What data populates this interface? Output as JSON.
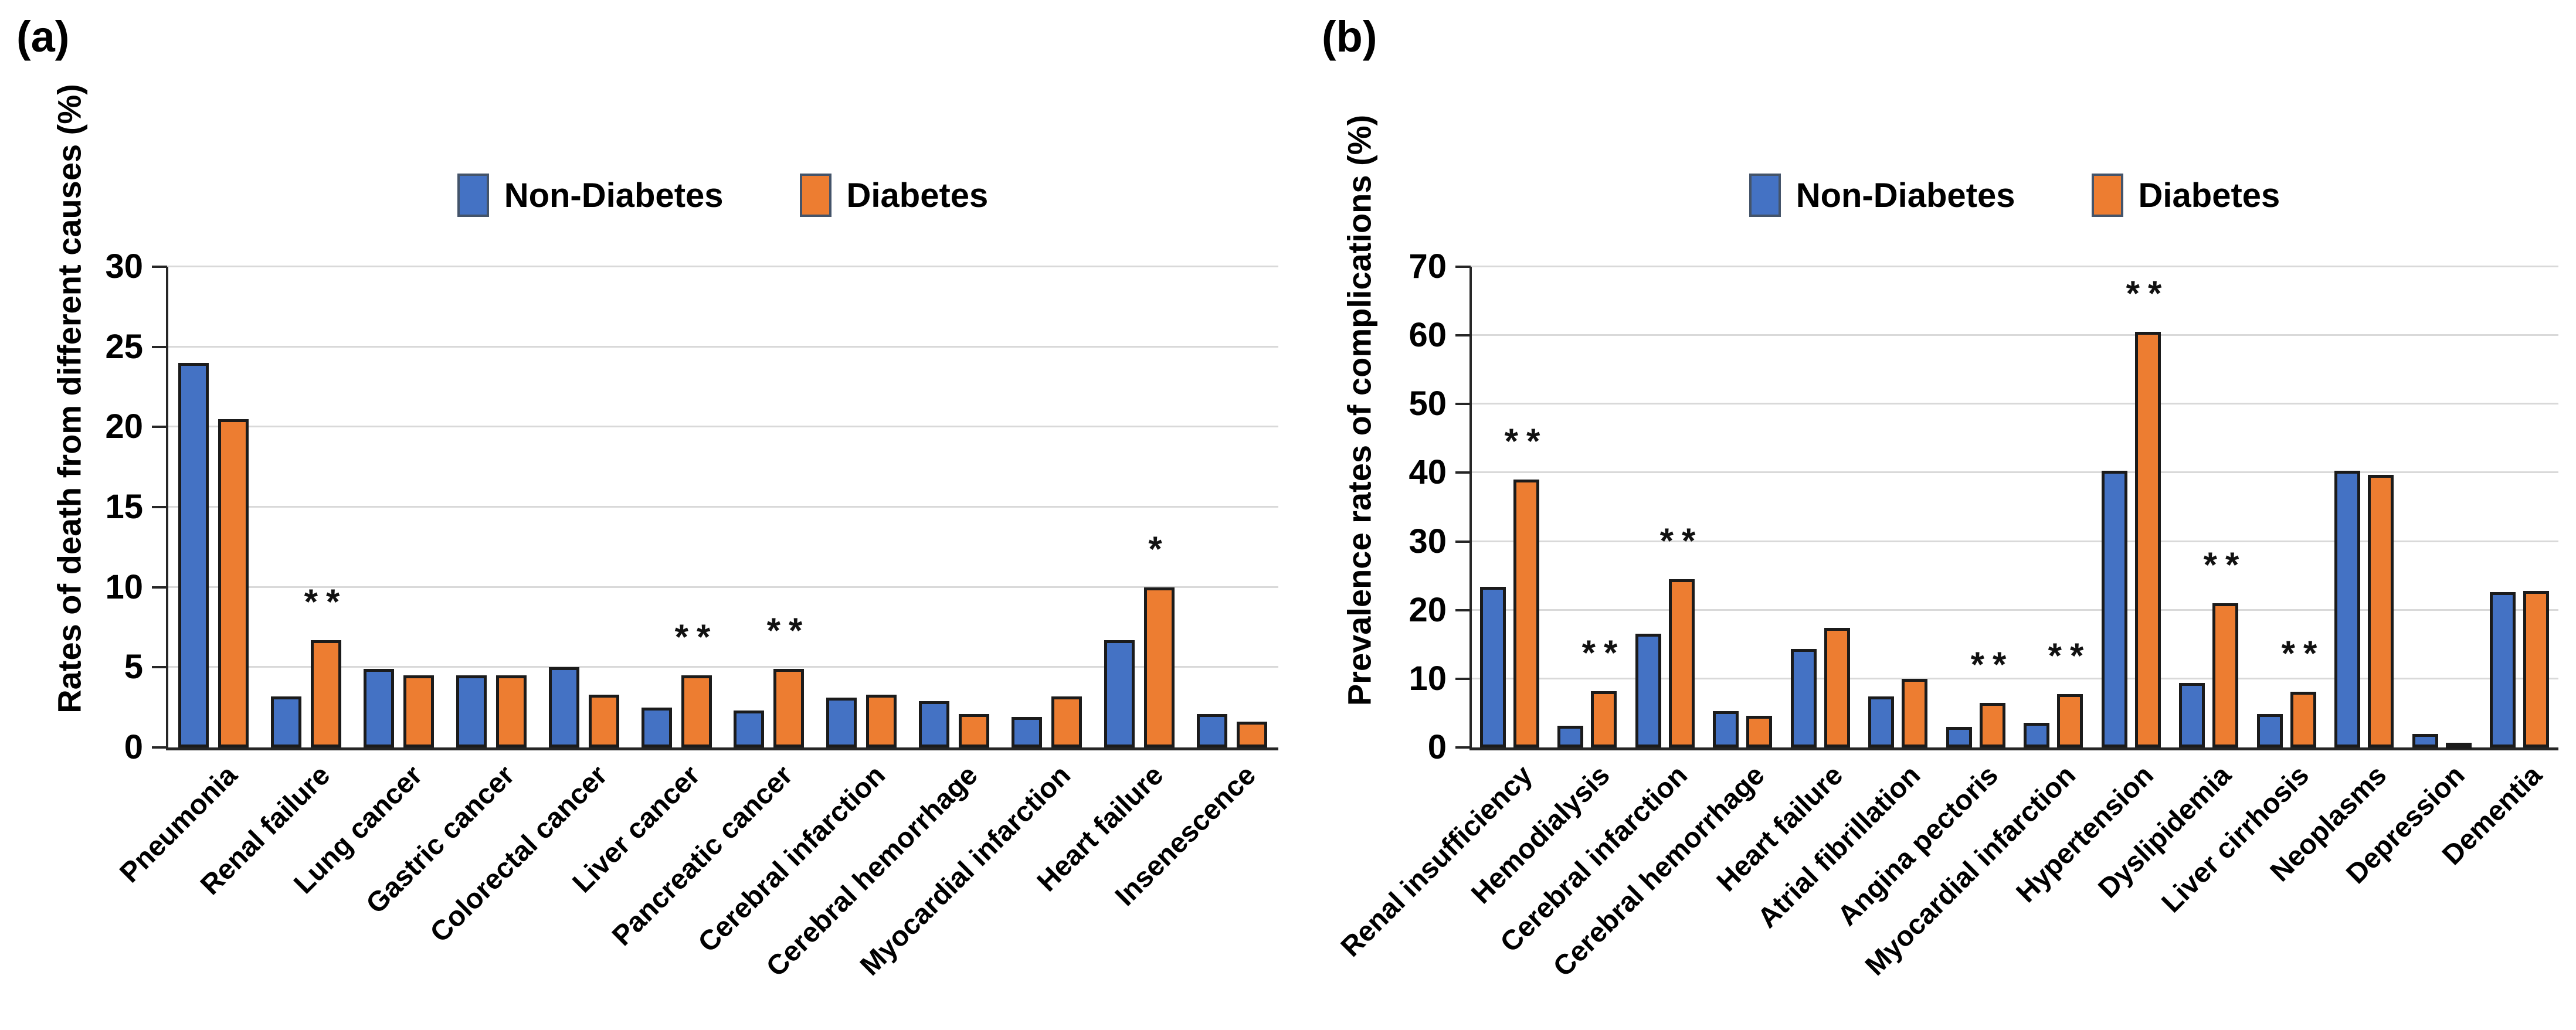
{
  "legend": {
    "items": [
      {
        "label": "Non-Diabetes",
        "color": "#4472C4"
      },
      {
        "label": "Diabetes",
        "color": "#ED7D31"
      }
    ]
  },
  "colors": {
    "non_diabetes": "#4472C4",
    "diabetes": "#ED7D31",
    "bar_border": "#1b1b1b",
    "swatch_border": "#44546A",
    "gridline": "#D9D9D9",
    "axis": "#262626",
    "text": "#000000"
  },
  "chart_data": [
    {
      "id": "a",
      "panel_label": "(a)",
      "type": "bar",
      "title": "",
      "ylabel": "Rates of death from different causes (%)",
      "xlabel": "",
      "ylim": [
        0,
        30
      ],
      "yticks": [
        0,
        5,
        10,
        15,
        20,
        25,
        30
      ],
      "grid": true,
      "legend_position": "top-center",
      "categories": [
        "Pneumonia",
        "Renal failure",
        "Lung cancer",
        "Gastric cancer",
        "Colorectal cancer",
        "Liver cancer",
        "Pancreatic cancer",
        "Cerebral infarction",
        "Cerebral hemorrhage",
        "Myocardial infarction",
        "Heart failure",
        "Insenescence"
      ],
      "series": [
        {
          "name": "Non-Diabetes",
          "values": [
            24.0,
            3.2,
            4.9,
            4.5,
            5.0,
            2.5,
            2.3,
            3.1,
            2.9,
            1.9,
            6.7,
            2.1
          ]
        },
        {
          "name": "Diabetes",
          "values": [
            20.5,
            6.7,
            4.5,
            4.5,
            3.3,
            4.5,
            4.9,
            3.3,
            2.1,
            3.2,
            10.0,
            1.6
          ]
        }
      ],
      "significance": [
        "",
        "**",
        "",
        "",
        "",
        "**",
        "**",
        "",
        "",
        "",
        "*",
        ""
      ]
    },
    {
      "id": "b",
      "panel_label": "(b)",
      "type": "bar",
      "title": "",
      "ylabel": "Prevalence rates of complications (%)",
      "xlabel": "",
      "ylim": [
        0,
        70
      ],
      "yticks": [
        0,
        10,
        20,
        30,
        40,
        50,
        60,
        70
      ],
      "grid": true,
      "legend_position": "top-center",
      "categories": [
        "Renal insufficiency",
        "Hemodialysis",
        "Cerebral infarction",
        "Cerebral hemorrhage",
        "Heart failure",
        "Atrial fibrillation",
        "Angina pectoris",
        "Myocardial infarction",
        "Hypertension",
        "Dyslipidemia",
        "Liver cirrhosis",
        "Neoplasms",
        "Depression",
        "Dementia"
      ],
      "series": [
        {
          "name": "Non-Diabetes",
          "values": [
            23.4,
            3.2,
            16.6,
            5.3,
            14.3,
            7.4,
            3.0,
            3.6,
            40.3,
            9.4,
            4.9,
            40.3,
            2.0,
            22.6
          ]
        },
        {
          "name": "Diabetes",
          "values": [
            39.0,
            8.2,
            24.5,
            4.6,
            17.4,
            10.0,
            6.5,
            7.8,
            60.5,
            21.0,
            8.1,
            39.7,
            0.7,
            22.8
          ]
        }
      ],
      "significance": [
        "**",
        "**",
        "**",
        "",
        "",
        "",
        "**",
        "**",
        "**",
        "**",
        "**",
        "",
        "",
        ""
      ]
    }
  ]
}
